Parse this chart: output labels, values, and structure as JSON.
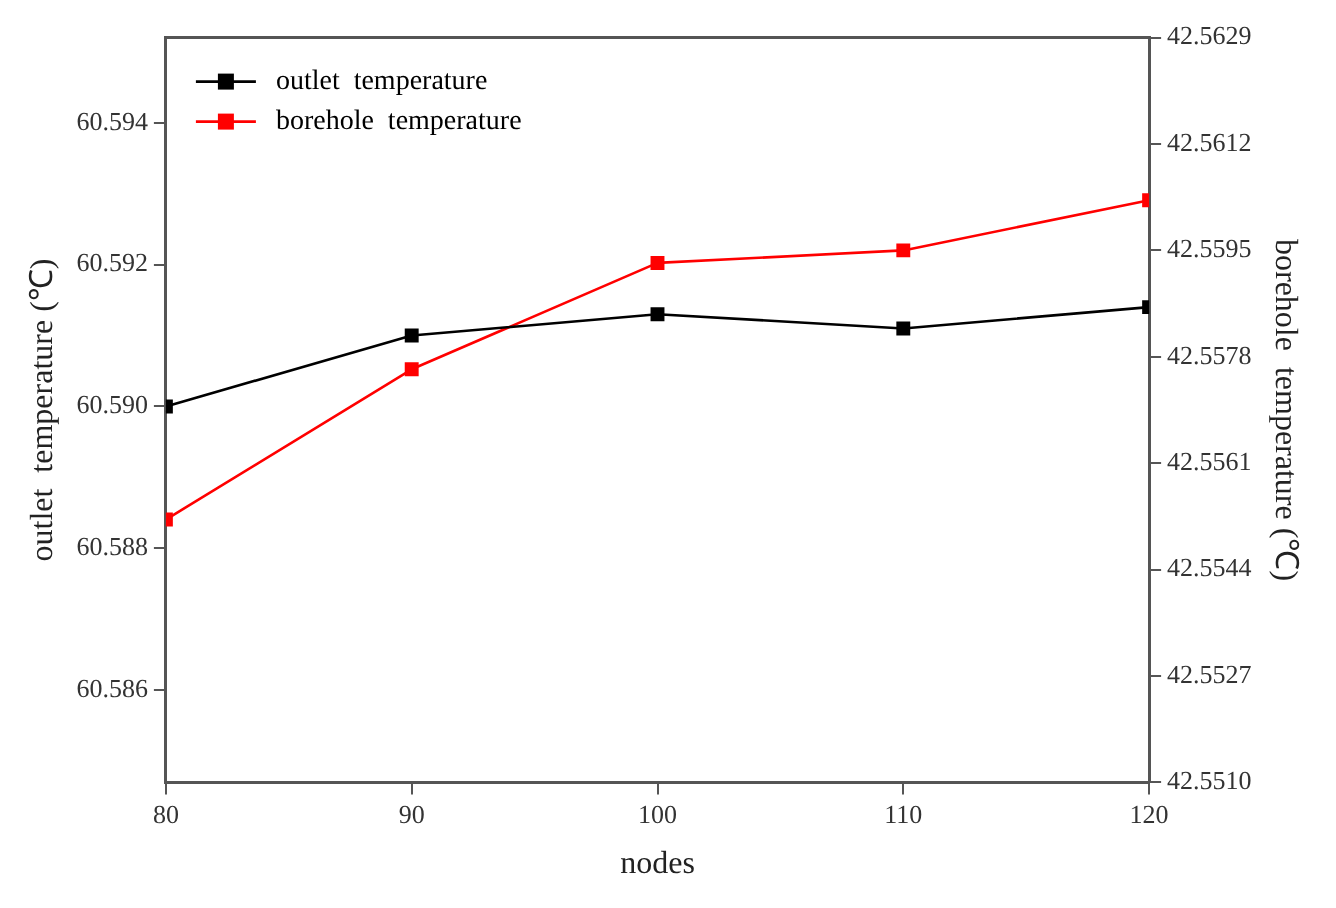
{
  "chart_data": {
    "type": "line",
    "xlabel": "nodes",
    "ylabel": "outlet  temperature (℃)",
    "y2label": "borehole  temperature (℃)",
    "x": [
      80,
      90,
      100,
      110,
      120
    ],
    "xlim": [
      80,
      120
    ],
    "xticks": [
      80,
      90,
      100,
      110,
      120
    ],
    "ylim": [
      60.5847,
      60.5952
    ],
    "yticks": [
      {
        "value": 60.586,
        "label": "60.586"
      },
      {
        "value": 60.588,
        "label": "60.588"
      },
      {
        "value": 60.59,
        "label": "60.590"
      },
      {
        "value": 60.592,
        "label": "60.592"
      },
      {
        "value": 60.594,
        "label": "60.594"
      }
    ],
    "y2lim": [
      42.551,
      42.5629
    ],
    "y2ticks": [
      {
        "value": 42.551,
        "label": "42.5510"
      },
      42.5527,
      42.5544,
      42.5561,
      42.5578,
      42.5595,
      42.5612,
      42.5629
    ],
    "series": [
      {
        "name": "outlet  temperature",
        "color": "#000000",
        "values": [
          60.59,
          60.591,
          60.5913,
          60.5911,
          60.5914
        ]
      },
      {
        "name": "borehole  temperature",
        "color": "#ff0000",
        "axis": "y2",
        "values": [
          42.5552,
          42.5576,
          42.5593,
          42.5595,
          42.5603
        ]
      }
    ],
    "marker": "square",
    "line_style": "solid",
    "grid": false,
    "legend": "top left"
  }
}
